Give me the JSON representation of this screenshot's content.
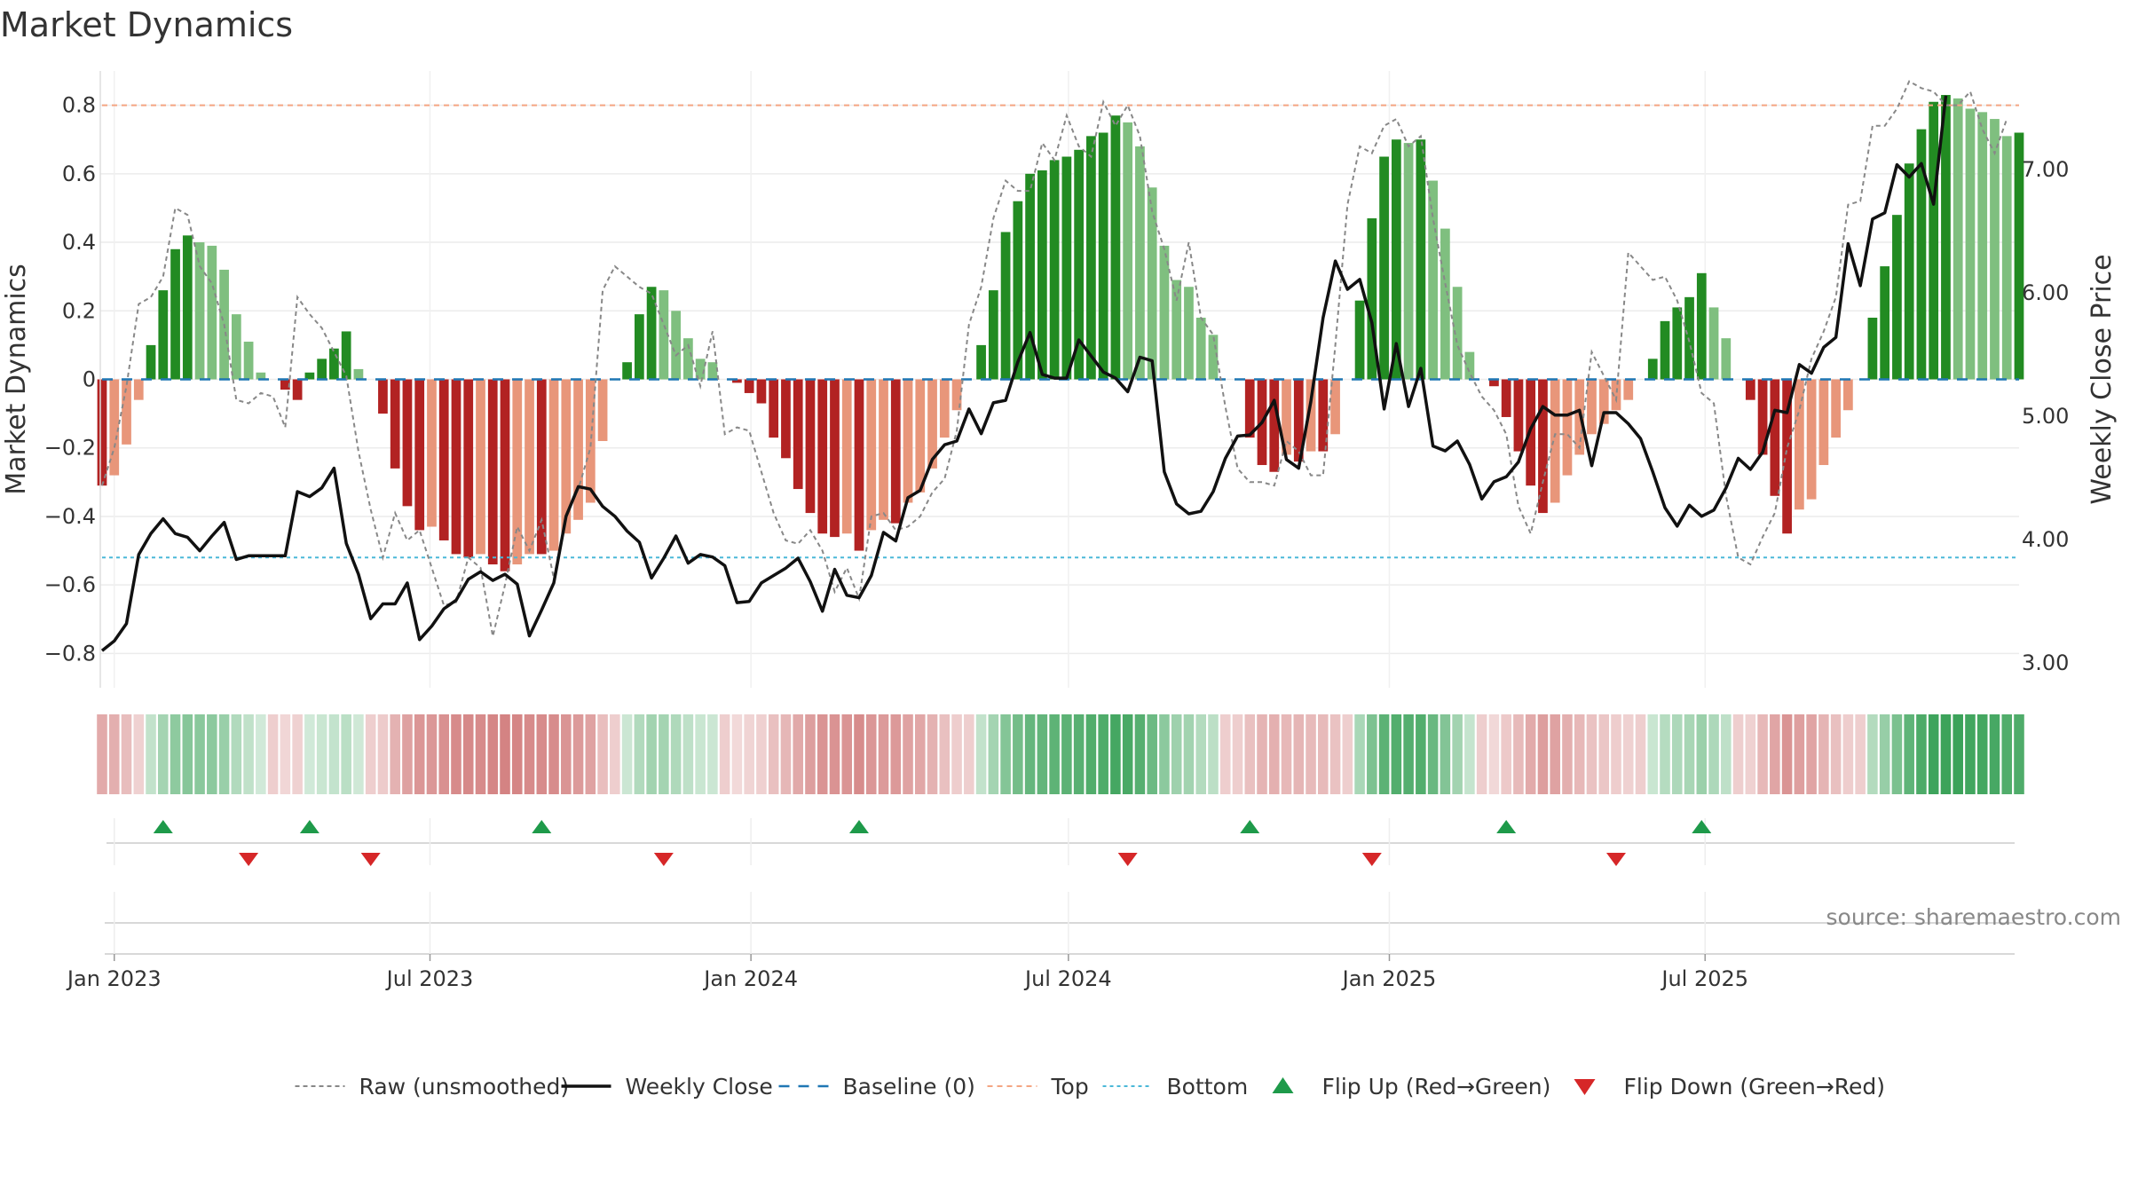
{
  "title": "Market Dynamics",
  "source": "source: sharemaestro.com",
  "colors": {
    "pos_strong": "#228B22",
    "pos_weak": "#7FBF7F",
    "neg_strong": "#B22222",
    "neg_weak": "#E8967A",
    "raw": "#888888",
    "close": "#111111",
    "baseline": "#1F77B4",
    "top": "#F4A582",
    "bottom": "#4BB8D8",
    "flip_up": "#1E9A4A",
    "flip_down": "#D62728"
  },
  "legend": [
    {
      "key": "raw",
      "label": "Raw (unsmoothed)"
    },
    {
      "key": "close",
      "label": "Weekly Close"
    },
    {
      "key": "baseline",
      "label": "Baseline (0)"
    },
    {
      "key": "top",
      "label": "Top"
    },
    {
      "key": "bottom",
      "label": "Bottom"
    },
    {
      "key": "flip_up",
      "label": "Flip Up (Red→Green)"
    },
    {
      "key": "flip_down",
      "label": "Flip Down (Green→Red)"
    }
  ],
  "chart_data": {
    "type": "bar",
    "title": "Market Dynamics",
    "start_date": "2022-12-25",
    "ylabel_left": "Market Dynamics",
    "ylabel_right": "Weekly Close Price",
    "ylim_left": [
      -0.9,
      0.9
    ],
    "ylim_right": [
      2.8,
      7.8
    ],
    "yticks_left": [
      "0.8",
      "0.6",
      "0.4",
      "0.2",
      "0",
      "−0.2",
      "−0.4",
      "−0.6",
      "−0.8"
    ],
    "ytick_values_left": [
      0.8,
      0.6,
      0.4,
      0.2,
      0,
      -0.2,
      -0.4,
      -0.6,
      -0.8
    ],
    "yticks_right": [
      "7.00",
      "6.00",
      "5.00",
      "4.00",
      "3.00"
    ],
    "ytick_values_right": [
      7,
      6,
      5,
      4,
      3
    ],
    "x_tick_labels": [
      "Jan 2023",
      "Jul 2023",
      "Jan 2024",
      "Jul 2024",
      "Jan 2025",
      "Jul 2025"
    ],
    "x_tick_dates": [
      "2023-01-01",
      "2023-07-01",
      "2024-01-01",
      "2024-07-01",
      "2025-01-01",
      "2025-07-01"
    ],
    "top_level": 0.8,
    "bottom_level": -0.52,
    "baseline": 0,
    "series": [
      {
        "name": "Market Dynamics",
        "values": [
          -0.31,
          -0.28,
          -0.19,
          -0.06,
          0.1,
          0.26,
          0.38,
          0.42,
          0.4,
          0.39,
          0.32,
          0.19,
          0.11,
          0.02,
          0,
          -0.03,
          -0.06,
          0.02,
          0.06,
          0.09,
          0.14,
          0.03,
          0,
          -0.1,
          -0.26,
          -0.37,
          -0.44,
          -0.43,
          -0.47,
          -0.51,
          -0.52,
          -0.51,
          -0.54,
          -0.56,
          -0.54,
          -0.51,
          -0.51,
          -0.5,
          -0.45,
          -0.41,
          -0.36,
          -0.18,
          0,
          0.05,
          0.19,
          0.27,
          0.26,
          0.2,
          0.12,
          0.06,
          0.05,
          0,
          -0.01,
          -0.04,
          -0.07,
          -0.17,
          -0.23,
          -0.32,
          -0.39,
          -0.45,
          -0.46,
          -0.45,
          -0.5,
          -0.44,
          -0.41,
          -0.42,
          -0.36,
          -0.33,
          -0.26,
          -0.17,
          -0.09,
          0,
          0.1,
          0.26,
          0.43,
          0.52,
          0.6,
          0.61,
          0.64,
          0.65,
          0.67,
          0.71,
          0.72,
          0.77,
          0.75,
          0.68,
          0.56,
          0.39,
          0.29,
          0.27,
          0.18,
          0.13,
          0,
          0,
          -0.17,
          -0.25,
          -0.27,
          -0.22,
          -0.24,
          -0.21,
          -0.21,
          -0.16,
          0,
          0.23,
          0.47,
          0.65,
          0.7,
          0.69,
          0.7,
          0.58,
          0.44,
          0.27,
          0.08,
          0,
          -0.02,
          -0.11,
          -0.21,
          -0.31,
          -0.39,
          -0.36,
          -0.28,
          -0.22,
          -0.16,
          -0.13,
          -0.09,
          -0.06,
          0,
          0.06,
          0.17,
          0.21,
          0.24,
          0.31,
          0.21,
          0.12,
          0,
          -0.06,
          -0.22,
          -0.34,
          -0.45,
          -0.38,
          -0.35,
          -0.25,
          -0.17,
          -0.09,
          0,
          0.18,
          0.33,
          0.48,
          0.63,
          0.73,
          0.81,
          0.83,
          0.82,
          0.79,
          0.78,
          0.76,
          0.71,
          0.72
        ]
      },
      {
        "name": "Raw (unsmoothed)",
        "values": [
          -0.31,
          -0.2,
          -0.02,
          0.22,
          0.24,
          0.3,
          0.5,
          0.48,
          0.33,
          0.28,
          0.16,
          -0.06,
          -0.07,
          -0.04,
          -0.05,
          -0.14,
          0.24,
          0.19,
          0.15,
          0.08,
          0.01,
          -0.21,
          -0.38,
          -0.52,
          -0.39,
          -0.47,
          -0.44,
          -0.55,
          -0.66,
          -0.65,
          -0.52,
          -0.55,
          -0.75,
          -0.6,
          -0.43,
          -0.5,
          -0.41,
          -0.58,
          -0.4,
          -0.32,
          -0.2,
          0.26,
          0.33,
          0.3,
          0.27,
          0.25,
          0.16,
          0.07,
          0.1,
          -0.02,
          0.14,
          -0.16,
          -0.14,
          -0.15,
          -0.27,
          -0.39,
          -0.47,
          -0.48,
          -0.44,
          -0.5,
          -0.62,
          -0.55,
          -0.64,
          -0.4,
          -0.39,
          -0.44,
          -0.43,
          -0.4,
          -0.33,
          -0.29,
          -0.15,
          0.16,
          0.27,
          0.47,
          0.58,
          0.55,
          0.55,
          0.69,
          0.64,
          0.77,
          0.68,
          0.65,
          0.81,
          0.74,
          0.8,
          0.71,
          0.49,
          0.38,
          0.23,
          0.4,
          0.18,
          0.13,
          -0.08,
          -0.26,
          -0.3,
          -0.3,
          -0.31,
          -0.18,
          -0.21,
          -0.28,
          -0.28,
          0.1,
          0.51,
          0.68,
          0.66,
          0.74,
          0.76,
          0.68,
          0.71,
          0.47,
          0.28,
          0.1,
          0.02,
          -0.05,
          -0.09,
          -0.16,
          -0.37,
          -0.45,
          -0.3,
          -0.16,
          -0.16,
          -0.2,
          0.08,
          0.01,
          -0.06,
          0.37,
          0.33,
          0.29,
          0.3,
          0.23,
          0.11,
          -0.04,
          -0.07,
          -0.34,
          -0.52,
          -0.54,
          -0.46,
          -0.39,
          -0.2,
          -0.09,
          0.06,
          0.14,
          0.24,
          0.51,
          0.52,
          0.74,
          0.74,
          0.79,
          0.87,
          0.85,
          0.84,
          0.8,
          0.8,
          0.84,
          0.73,
          0.66,
          0.76
        ]
      },
      {
        "name": "Weekly Close",
        "axis": "right",
        "values": [
          3.1,
          3.18,
          3.32,
          3.88,
          4.05,
          4.17,
          4.05,
          4.02,
          3.91,
          4.03,
          4.14,
          3.84,
          3.87,
          3.87,
          3.87,
          3.87,
          4.39,
          4.35,
          4.42,
          4.58,
          3.97,
          3.72,
          3.36,
          3.48,
          3.48,
          3.65,
          3.19,
          3.3,
          3.44,
          3.51,
          3.68,
          3.74,
          3.67,
          3.72,
          3.64,
          3.22,
          3.43,
          3.65,
          4.19,
          4.43,
          4.41,
          4.27,
          4.19,
          4.07,
          3.98,
          3.69,
          3.85,
          4.03,
          3.81,
          3.88,
          3.86,
          3.79,
          3.49,
          3.5,
          3.65,
          3.71,
          3.77,
          3.85,
          3.66,
          3.42,
          3.76,
          3.55,
          3.53,
          3.71,
          4.06,
          3.99,
          4.34,
          4.4,
          4.65,
          4.77,
          4.8,
          5.06,
          4.86,
          5.11,
          5.13,
          5.44,
          5.68,
          5.34,
          5.31,
          5.31,
          5.62,
          5.49,
          5.36,
          5.31,
          5.2,
          5.48,
          5.45,
          4.55,
          4.29,
          4.21,
          4.23,
          4.39,
          4.66,
          4.84,
          4.85,
          4.95,
          5.13,
          4.65,
          4.58,
          5.12,
          5.8,
          6.26,
          6.03,
          6.11,
          5.76,
          5.06,
          5.59,
          5.08,
          5.39,
          4.76,
          4.72,
          4.8,
          4.61,
          4.33,
          4.47,
          4.51,
          4.63,
          4.9,
          5.08,
          5.01,
          5.01,
          5.05,
          4.6,
          5.03,
          5.03,
          4.94,
          4.82,
          4.55,
          4.26,
          4.11,
          4.28,
          4.19,
          4.24,
          4.42,
          4.66,
          4.57,
          4.71,
          5.05,
          5.03,
          5.42,
          5.35,
          5.56,
          5.64,
          6.4,
          6.06,
          6.6,
          6.65,
          7.04,
          6.94,
          7.05,
          6.72,
          7.6
        ]
      }
    ],
    "flips": {
      "up": [
        "2023-01-29",
        "2023-04-23",
        "2023-09-03",
        "2024-03-03",
        "2024-10-13",
        "2025-03-09",
        "2025-06-29"
      ],
      "down": [
        "2023-03-19",
        "2023-05-28",
        "2023-11-12",
        "2024-08-04",
        "2024-12-22",
        "2025-05-11"
      ]
    },
    "grid": true,
    "legend_position": "bottom"
  }
}
